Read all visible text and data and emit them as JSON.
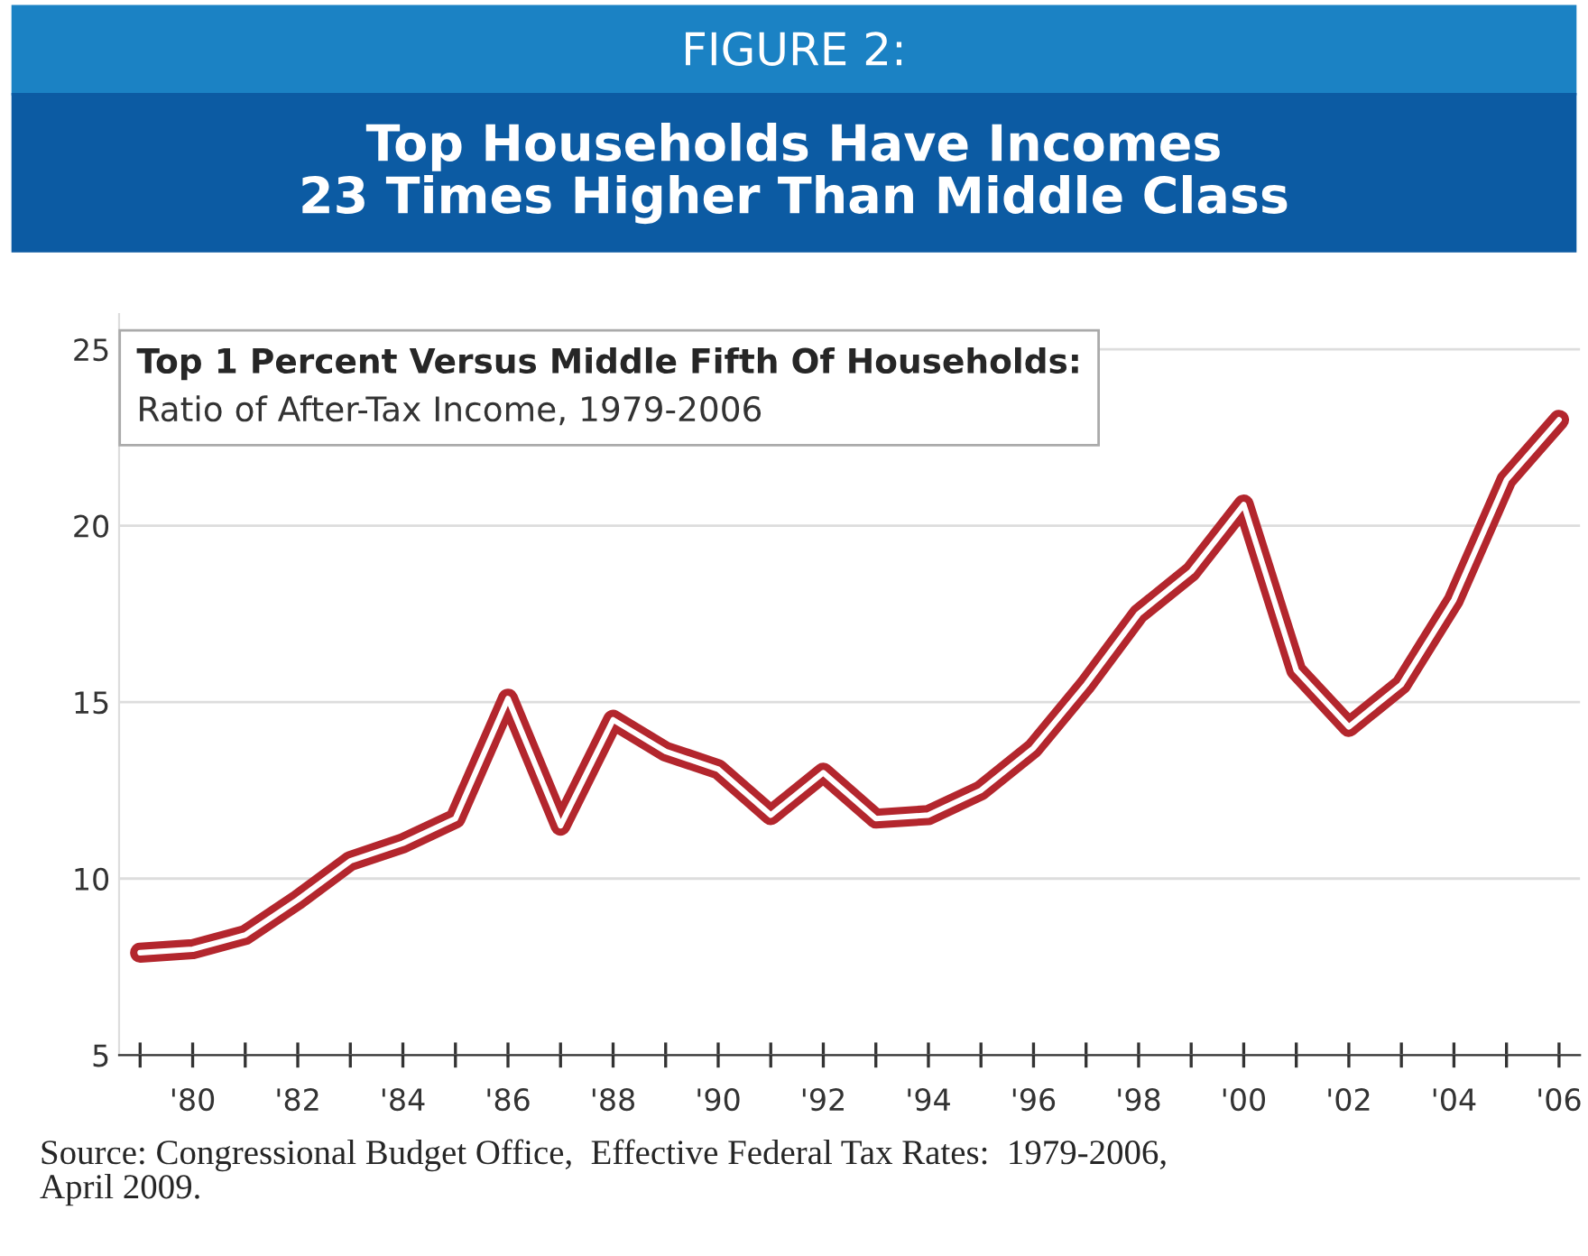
{
  "chart_data": {
    "type": "line",
    "title": "FIGURE 2:",
    "subtitle": "Top Households Have Incomes\n23 Times Higher Than Middle Class",
    "annotations": [
      "Top 1 Percent Versus Middle Fifth Of Households:",
      "Ratio of After-Tax Income, 1979-2006",
      "Source: Congressional Budget Office,  Effective Federal Tax Rates:  1979-2006,\nApril 2009."
    ],
    "x": [
      1979,
      1980,
      1981,
      1982,
      1983,
      1984,
      1985,
      1986,
      1987,
      1988,
      1989,
      1990,
      1991,
      1992,
      1993,
      1994,
      1995,
      1996,
      1997,
      1998,
      1999,
      2000,
      2001,
      2002,
      2003,
      2004,
      2005,
      2006
    ],
    "series": [
      {
        "color": "#b3262d",
        "values": [
          7.9,
          8.0,
          8.4,
          9.4,
          10.5,
          11.0,
          11.7,
          15.1,
          11.5,
          14.5,
          13.6,
          13.1,
          11.8,
          13.0,
          11.7,
          11.8,
          12.5,
          13.7,
          15.5,
          17.5,
          18.7,
          20.6,
          15.9,
          14.3,
          15.5,
          17.9,
          21.3,
          23.0
        ]
      }
    ],
    "xlim": [
      1978.6,
      2006.4
    ],
    "xticks": [
      {
        "value": 1979,
        "label": null
      },
      {
        "value": 1980,
        "label": "'80"
      },
      {
        "value": 1981,
        "label": null
      },
      {
        "value": 1982,
        "label": "'82"
      },
      {
        "value": 1983,
        "label": null
      },
      {
        "value": 1984,
        "label": "'84"
      },
      {
        "value": 1985,
        "label": null
      },
      {
        "value": 1986,
        "label": "'86"
      },
      {
        "value": 1987,
        "label": null
      },
      {
        "value": 1988,
        "label": "'88"
      },
      {
        "value": 1989,
        "label": null
      },
      {
        "value": 1990,
        "label": "'90"
      },
      {
        "value": 1991,
        "label": null
      },
      {
        "value": 1992,
        "label": "'92"
      },
      {
        "value": 1993,
        "label": null
      },
      {
        "value": 1994,
        "label": "'94"
      },
      {
        "value": 1995,
        "label": null
      },
      {
        "value": 1996,
        "label": "'96"
      },
      {
        "value": 1997,
        "label": null
      },
      {
        "value": 1998,
        "label": "'98"
      },
      {
        "value": 1999,
        "label": null
      },
      {
        "value": 2000,
        "label": "'00"
      },
      {
        "value": 2001,
        "label": null
      },
      {
        "value": 2002,
        "label": "'02"
      },
      {
        "value": 2003,
        "label": null
      },
      {
        "value": 2004,
        "label": "'04"
      },
      {
        "value": 2005,
        "label": null
      },
      {
        "value": 2006,
        "label": "'06"
      }
    ],
    "ylim": [
      5,
      26
    ],
    "yticks": [
      5,
      10,
      15,
      20,
      25
    ],
    "grid": "y",
    "line_style": "solid",
    "marker": "none"
  }
}
